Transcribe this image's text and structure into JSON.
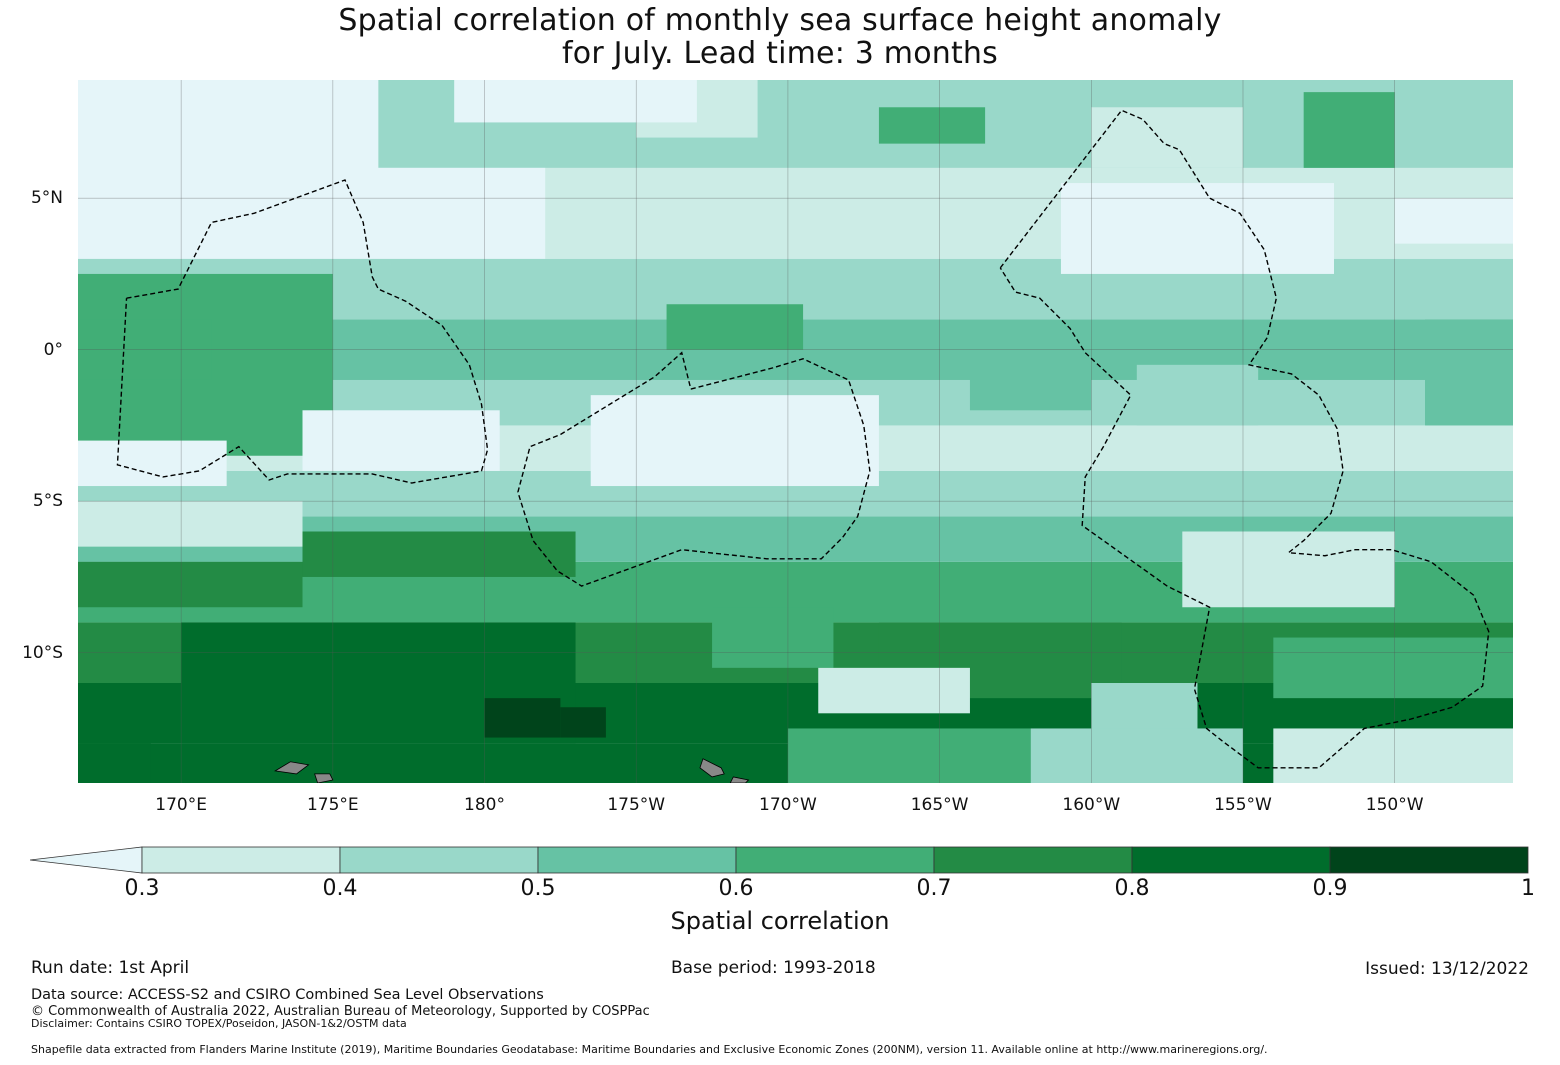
{
  "title": {
    "line1": "Spatial correlation of monthly sea surface height anomaly",
    "line2": "for July. Lead time: 3 months"
  },
  "map": {
    "extent": {
      "lon_min": 166.6,
      "lon_max": 213.9,
      "lat_min": -14.3,
      "lat_max": 8.9
    },
    "lat_ticks": [
      {
        "value": 5,
        "label": "5°N"
      },
      {
        "value": 0,
        "label": "0°"
      },
      {
        "value": -5,
        "label": "5°S"
      },
      {
        "value": -10,
        "label": "10°S"
      }
    ],
    "lon_ticks": [
      {
        "value": 170,
        "label": "170°E"
      },
      {
        "value": 175,
        "label": "175°E"
      },
      {
        "value": 180,
        "label": "180°"
      },
      {
        "value": 185,
        "label": "175°W"
      },
      {
        "value": 190,
        "label": "170°W"
      },
      {
        "value": 195,
        "label": "165°W"
      },
      {
        "value": 200,
        "label": "160°W"
      },
      {
        "value": 205,
        "label": "155°W"
      },
      {
        "value": 210,
        "label": "150°W"
      }
    ],
    "gridlines": true,
    "field_bands": [
      {
        "range": [
          -14.3,
          -13.0
        ],
        "level": 0.85
      },
      {
        "range": [
          -13.0,
          -11.0
        ],
        "level": 0.85
      },
      {
        "range": [
          -11.0,
          -9.0
        ],
        "level": 0.75
      },
      {
        "range": [
          -9.0,
          -7.0
        ],
        "level": 0.65
      },
      {
        "range": [
          -7.0,
          -5.5
        ],
        "level": 0.55
      },
      {
        "range": [
          -5.5,
          -4.0
        ],
        "level": 0.45
      },
      {
        "range": [
          -4.0,
          -2.5
        ],
        "level": 0.35
      },
      {
        "range": [
          -2.5,
          -1.0
        ],
        "level": 0.45
      },
      {
        "range": [
          -1.0,
          1.0
        ],
        "level": 0.55
      },
      {
        "range": [
          1.0,
          3.0
        ],
        "level": 0.45
      },
      {
        "range": [
          3.0,
          6.0
        ],
        "level": 0.35
      },
      {
        "range": [
          6.0,
          8.9
        ],
        "level": 0.45
      }
    ],
    "field_patches": [
      {
        "lon": [
          166.6,
          175.0
        ],
        "lat": [
          -3.5,
          2.5
        ],
        "level": 0.65
      },
      {
        "lon": [
          166.6,
          171.0
        ],
        "lat": [
          -1.0,
          1.0
        ],
        "level": 0.65
      },
      {
        "lon": [
          166.6,
          176.5
        ],
        "lat": [
          5.0,
          8.9
        ],
        "level": 0.2
      },
      {
        "lon": [
          166.6,
          182.0
        ],
        "lat": [
          3.0,
          6.0
        ],
        "level": 0.2
      },
      {
        "lon": [
          174.0,
          180.5
        ],
        "lat": [
          -4.0,
          -2.0
        ],
        "level": 0.2
      },
      {
        "lon": [
          166.6,
          171.5
        ],
        "lat": [
          -4.5,
          -3.0
        ],
        "level": 0.2
      },
      {
        "lon": [
          183.5,
          193.0
        ],
        "lat": [
          -4.5,
          -1.5
        ],
        "level": 0.2
      },
      {
        "lon": [
          199.0,
          208.0
        ],
        "lat": [
          2.5,
          5.5
        ],
        "level": 0.2
      },
      {
        "lon": [
          203.0,
          210.0
        ],
        "lat": [
          -8.5,
          -6.0
        ],
        "level": 0.35
      },
      {
        "lon": [
          210.0,
          213.9
        ],
        "lat": [
          3.5,
          5.0
        ],
        "level": 0.2
      },
      {
        "lon": [
          170.0,
          183.0
        ],
        "lat": [
          -13.0,
          -9.0
        ],
        "level": 0.85
      },
      {
        "lon": [
          166.6,
          169.0
        ],
        "lat": [
          -14.3,
          -13.0
        ],
        "level": 0.85
      },
      {
        "lon": [
          180.0,
          182.5
        ],
        "lat": [
          -12.8,
          -11.5
        ],
        "level": 0.95
      },
      {
        "lon": [
          182.5,
          184.0
        ],
        "lat": [
          -12.8,
          -11.8
        ],
        "level": 0.95
      },
      {
        "lon": [
          195.5,
          198.5
        ],
        "lat": [
          -10.8,
          -9.8
        ],
        "level": 0.85
      },
      {
        "lon": [
          193.0,
          201.0
        ],
        "lat": [
          -11.5,
          -9.0
        ],
        "level": 0.75
      },
      {
        "lon": [
          187.5,
          191.5
        ],
        "lat": [
          -10.5,
          -8.5
        ],
        "level": 0.65
      },
      {
        "lon": [
          191.0,
          196.0
        ],
        "lat": [
          -12.0,
          -10.5
        ],
        "level": 0.35
      },
      {
        "lon": [
          200.0,
          203.5
        ],
        "lat": [
          -13.0,
          -11.0
        ],
        "level": 0.45
      },
      {
        "lon": [
          206.0,
          213.9
        ],
        "lat": [
          -11.5,
          -9.5
        ],
        "level": 0.65
      },
      {
        "lon": [
          193.0,
          196.5
        ],
        "lat": [
          6.8,
          8.0
        ],
        "level": 0.65
      },
      {
        "lon": [
          207.0,
          210.0
        ],
        "lat": [
          6.0,
          8.5
        ],
        "level": 0.65
      },
      {
        "lon": [
          185.0,
          189.0
        ],
        "lat": [
          7.0,
          8.9
        ],
        "level": 0.3
      },
      {
        "lon": [
          179.0,
          187.0
        ],
        "lat": [
          7.5,
          8.9
        ],
        "level": 0.2
      },
      {
        "lon": [
          200.0,
          205.0
        ],
        "lat": [
          6.0,
          8.0
        ],
        "level": 0.35
      },
      {
        "lon": [
          196.0,
          200.0
        ],
        "lat": [
          -2.0,
          0.5
        ],
        "level": 0.55
      },
      {
        "lon": [
          201.5,
          205.5
        ],
        "lat": [
          -2.5,
          -0.5
        ],
        "level": 0.45
      },
      {
        "lon": [
          186.0,
          190.5
        ],
        "lat": [
          0.0,
          1.5
        ],
        "level": 0.65
      },
      {
        "lon": [
          198.0,
          205.0
        ],
        "lat": [
          -14.3,
          -12.5
        ],
        "level": 0.45
      },
      {
        "lon": [
          206.0,
          213.9
        ],
        "lat": [
          -14.3,
          -12.5
        ],
        "level": 0.35
      },
      {
        "lon": [
          190.0,
          198.0
        ],
        "lat": [
          -14.3,
          -12.5
        ],
        "level": 0.65
      },
      {
        "lon": [
          166.6,
          174.0
        ],
        "lat": [
          -6.5,
          -5.0
        ],
        "level": 0.35
      },
      {
        "lon": [
          174.0,
          183.0
        ],
        "lat": [
          -7.5,
          -6.0
        ],
        "level": 0.75
      },
      {
        "lon": [
          166.6,
          174.0
        ],
        "lat": [
          -8.5,
          -7.0
        ],
        "level": 0.75
      },
      {
        "lon": [
          211.0,
          213.9
        ],
        "lat": [
          -2.5,
          1.0
        ],
        "level": 0.55
      }
    ],
    "eez_outlines": [
      [
        [
          168.2,
          1.7
        ],
        [
          169.9,
          2.0
        ],
        [
          171.0,
          4.2
        ],
        [
          172.4,
          4.5
        ],
        [
          175.4,
          5.6
        ],
        [
          176.0,
          4.2
        ],
        [
          176.3,
          2.4
        ],
        [
          176.5,
          2.0
        ],
        [
          177.4,
          1.6
        ],
        [
          178.6,
          0.8
        ],
        [
          179.5,
          -0.5
        ],
        [
          179.9,
          -1.8
        ],
        [
          180.1,
          -3.3
        ],
        [
          179.9,
          -4.0
        ],
        [
          177.6,
          -4.4
        ],
        [
          176.3,
          -4.1
        ],
        [
          173.5,
          -4.1
        ],
        [
          172.9,
          -4.3
        ],
        [
          171.9,
          -3.2
        ],
        [
          170.6,
          -4.0
        ],
        [
          169.4,
          -4.2
        ],
        [
          167.9,
          -3.8
        ],
        [
          168.2,
          1.7
        ]
      ],
      [
        [
          186.8,
          -1.3
        ],
        [
          189.5,
          -0.6
        ],
        [
          190.5,
          -0.3
        ],
        [
          192.0,
          -1.0
        ],
        [
          192.5,
          -2.5
        ],
        [
          192.7,
          -4.0
        ],
        [
          192.3,
          -5.5
        ],
        [
          191.8,
          -6.2
        ],
        [
          191.1,
          -6.9
        ],
        [
          189.3,
          -6.9
        ],
        [
          187.4,
          -6.7
        ],
        [
          186.5,
          -6.6
        ],
        [
          183.2,
          -7.8
        ],
        [
          182.4,
          -7.3
        ],
        [
          181.6,
          -6.3
        ],
        [
          181.1,
          -4.7
        ],
        [
          181.5,
          -3.2
        ],
        [
          182.5,
          -2.8
        ],
        [
          185.6,
          -0.9
        ],
        [
          186.5,
          -0.1
        ],
        [
          186.8,
          -1.3
        ]
      ],
      [
        [
          197.0,
          2.7
        ],
        [
          201.0,
          7.9
        ],
        [
          201.7,
          7.6
        ],
        [
          202.4,
          6.8
        ],
        [
          202.9,
          6.6
        ],
        [
          203.9,
          5.0
        ],
        [
          204.9,
          4.5
        ],
        [
          205.7,
          3.3
        ],
        [
          206.1,
          1.7
        ],
        [
          205.8,
          0.4
        ],
        [
          205.2,
          -0.5
        ],
        [
          206.6,
          -0.8
        ],
        [
          207.5,
          -1.5
        ],
        [
          208.1,
          -2.6
        ],
        [
          208.3,
          -4.0
        ],
        [
          207.9,
          -5.4
        ],
        [
          207.0,
          -6.3
        ],
        [
          206.5,
          -6.7
        ],
        [
          207.7,
          -6.8
        ],
        [
          208.7,
          -6.6
        ],
        [
          209.9,
          -6.6
        ],
        [
          211.2,
          -7.0
        ],
        [
          212.6,
          -8.1
        ],
        [
          213.1,
          -9.3
        ],
        [
          212.9,
          -11.1
        ],
        [
          211.9,
          -11.8
        ],
        [
          210.5,
          -12.2
        ],
        [
          209.0,
          -12.5
        ],
        [
          207.5,
          -13.8
        ],
        [
          205.5,
          -13.8
        ],
        [
          204.3,
          -12.9
        ],
        [
          203.8,
          -12.5
        ],
        [
          203.4,
          -11.2
        ],
        [
          203.9,
          -8.5
        ],
        [
          202.5,
          -7.8
        ],
        [
          199.7,
          -5.8
        ],
        [
          199.8,
          -4.2
        ],
        [
          200.4,
          -3.2
        ],
        [
          201.3,
          -1.5
        ],
        [
          199.8,
          -0.1
        ],
        [
          199.3,
          0.7
        ],
        [
          198.3,
          1.7
        ],
        [
          197.5,
          1.9
        ],
        [
          197.0,
          2.7
        ]
      ]
    ],
    "land": [
      [
        [
          173.1,
          -13.9
        ],
        [
          173.6,
          -13.6
        ],
        [
          174.2,
          -13.7
        ],
        [
          173.8,
          -14.0
        ],
        [
          173.1,
          -13.9
        ]
      ],
      [
        [
          174.4,
          -14.0
        ],
        [
          174.9,
          -14.0
        ],
        [
          175.0,
          -14.2
        ],
        [
          174.5,
          -14.3
        ],
        [
          174.4,
          -14.0
        ]
      ],
      [
        [
          187.2,
          -13.5
        ],
        [
          187.8,
          -13.8
        ],
        [
          187.9,
          -14.0
        ],
        [
          187.5,
          -14.1
        ],
        [
          187.1,
          -13.8
        ],
        [
          187.2,
          -13.5
        ]
      ],
      [
        [
          188.2,
          -14.1
        ],
        [
          188.7,
          -14.2
        ],
        [
          188.6,
          -14.3
        ],
        [
          188.1,
          -14.3
        ],
        [
          188.2,
          -14.1
        ]
      ]
    ]
  },
  "colorbar": {
    "ticks": [
      "0.3",
      "0.4",
      "0.5",
      "0.6",
      "0.7",
      "0.8",
      "0.9",
      "1"
    ],
    "extend_color": "#e5f5f9",
    "colors": [
      "#ccece6",
      "#99d8c9",
      "#66c2a4",
      "#41ae76",
      "#238b45",
      "#006d2c",
      "#00441b"
    ],
    "label": "Spatial correlation"
  },
  "footer": {
    "run_date": "Run date: 1st April",
    "base_period": "Base period: 1993-2018",
    "issued": "Issued: 13/12/2022",
    "data_source": "Data source: ACCESS-S2 and CSIRO Combined Sea Level Observations",
    "copyright": "© Commonwealth of Australia 2022, Australian Bureau of Meteorology, Supported by COSPPac",
    "disclaimer": "Disclaimer: Contains CSIRO TOPEX/Poseidon, JASON-1&2/OSTM data",
    "shapefile": "Shapefile data extracted from Flanders Marine Institute (2019), Maritime Boundaries Geodatabase: Maritime Boundaries and Exclusive Economic Zones (200NM), version 11. Available online at http://www.marineregions.org/."
  }
}
